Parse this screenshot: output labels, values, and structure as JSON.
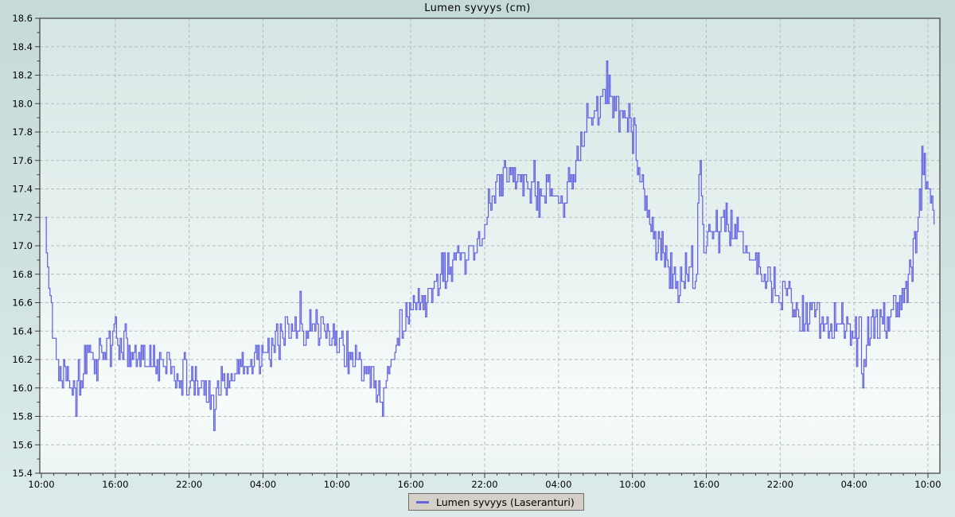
{
  "title": "Lumen syvyys (cm)",
  "legend": {
    "label": "Lumen syvyys (Laseranturi)"
  },
  "colors": {
    "series": "#6464e0",
    "grid": "#b6bdbd",
    "axis": "#3c3c3c",
    "text": "#000000",
    "plot_bg_top": "#d6e6e4",
    "plot_bg_light": "#f7fcfb",
    "plot_bg_bottom": "#edf5f4",
    "legend_bg": "#d4d0c8",
    "legend_border": "#6b6b6b"
  },
  "chart_data": {
    "type": "line",
    "title": "Lumen syvyys (cm)",
    "xlabel": "",
    "ylabel": "",
    "ylim": [
      15.4,
      18.6
    ],
    "y_tick_step": 0.2,
    "y_minor_step": 0.1,
    "grid": true,
    "legend_position": "bottom-center",
    "x_axis": {
      "unit": "time-of-day",
      "span_hours": 72,
      "major_tick_hours": 6,
      "minor_tick_hours": 1,
      "labels": [
        "10:00",
        "16:00",
        "22:00",
        "04:00",
        "10:00",
        "16:00",
        "22:00",
        "04:00",
        "10:00",
        "16:00",
        "22:00",
        "04:00",
        "10:00"
      ]
    },
    "series": [
      {
        "name": "Lumen syvyys (Laseranturi)",
        "color": "#6464e0",
        "quantize_cm": 0.05,
        "sample_step_hours": 0.1,
        "noise_seed": 13,
        "keyframes": [
          [
            0.3,
            17.05,
            0.12
          ],
          [
            0.45,
            17.1,
            0.1
          ],
          [
            0.7,
            16.6,
            0.1
          ],
          [
            1.0,
            16.35,
            0.1
          ],
          [
            1.4,
            16.15,
            0.1
          ],
          [
            2.2,
            16.15,
            0.13
          ],
          [
            2.8,
            15.98,
            0.14
          ],
          [
            3.4,
            16.15,
            0.13
          ],
          [
            4.5,
            16.22,
            0.12
          ],
          [
            5.5,
            16.32,
            0.12
          ],
          [
            6.3,
            16.35,
            0.12
          ],
          [
            7.2,
            16.22,
            0.1
          ],
          [
            8.5,
            16.18,
            0.11
          ],
          [
            10.0,
            16.18,
            0.11
          ],
          [
            11.2,
            16.1,
            0.12
          ],
          [
            12.3,
            16.02,
            0.1
          ],
          [
            13.2,
            16.0,
            0.1
          ],
          [
            14.0,
            15.92,
            0.14
          ],
          [
            14.4,
            16.02,
            0.1
          ],
          [
            15.5,
            16.08,
            0.1
          ],
          [
            16.8,
            16.18,
            0.1
          ],
          [
            18.0,
            16.25,
            0.11
          ],
          [
            19.2,
            16.32,
            0.13
          ],
          [
            20.5,
            16.42,
            0.13
          ],
          [
            22.0,
            16.42,
            0.13
          ],
          [
            23.2,
            16.4,
            0.12
          ],
          [
            24.0,
            16.38,
            0.13
          ],
          [
            24.6,
            16.28,
            0.12
          ],
          [
            25.6,
            16.18,
            0.12
          ],
          [
            26.6,
            16.08,
            0.13
          ],
          [
            27.6,
            15.95,
            0.11
          ],
          [
            28.2,
            16.1,
            0.1
          ],
          [
            28.9,
            16.42,
            0.1
          ],
          [
            30.0,
            16.55,
            0.11
          ],
          [
            31.2,
            16.6,
            0.12
          ],
          [
            32.5,
            16.78,
            0.12
          ],
          [
            33.8,
            16.88,
            0.12
          ],
          [
            35.0,
            16.95,
            0.11
          ],
          [
            35.8,
            17.1,
            0.1
          ],
          [
            36.5,
            17.35,
            0.1
          ],
          [
            37.5,
            17.47,
            0.11
          ],
          [
            39.0,
            17.47,
            0.12
          ],
          [
            40.0,
            17.42,
            0.13
          ],
          [
            40.6,
            17.3,
            0.15
          ],
          [
            41.3,
            17.45,
            0.12
          ],
          [
            42.1,
            17.28,
            0.1
          ],
          [
            42.9,
            17.42,
            0.1
          ],
          [
            43.7,
            17.68,
            0.1
          ],
          [
            44.5,
            17.92,
            0.1
          ],
          [
            45.3,
            18.0,
            0.12
          ],
          [
            45.9,
            18.08,
            0.2
          ],
          [
            46.5,
            17.95,
            0.1
          ],
          [
            47.4,
            17.9,
            0.1
          ],
          [
            48.1,
            17.8,
            0.13
          ],
          [
            48.8,
            17.5,
            0.15
          ],
          [
            49.5,
            17.1,
            0.13
          ],
          [
            50.4,
            16.95,
            0.14
          ],
          [
            51.3,
            16.8,
            0.15
          ],
          [
            52.4,
            16.78,
            0.14
          ],
          [
            53.2,
            16.9,
            0.13
          ],
          [
            53.45,
            17.35,
            0.25
          ],
          [
            53.8,
            17.0,
            0.12
          ],
          [
            54.5,
            17.12,
            0.13
          ],
          [
            55.5,
            17.15,
            0.12
          ],
          [
            56.6,
            17.1,
            0.12
          ],
          [
            57.6,
            16.95,
            0.12
          ],
          [
            58.6,
            16.8,
            0.1
          ],
          [
            60.0,
            16.68,
            0.12
          ],
          [
            61.5,
            16.55,
            0.12
          ],
          [
            63.0,
            16.5,
            0.12
          ],
          [
            64.5,
            16.45,
            0.13
          ],
          [
            65.8,
            16.4,
            0.15
          ],
          [
            66.7,
            16.28,
            0.18
          ],
          [
            67.4,
            16.42,
            0.12
          ],
          [
            68.5,
            16.48,
            0.12
          ],
          [
            69.5,
            16.58,
            0.12
          ],
          [
            70.3,
            16.75,
            0.11
          ],
          [
            71.0,
            17.0,
            0.1
          ],
          [
            71.45,
            17.5,
            0.16
          ],
          [
            71.9,
            17.42,
            0.12
          ],
          [
            72.5,
            17.15,
            0.06
          ]
        ],
        "anchor_points": [
          [
            0.35,
            17.2
          ],
          [
            2.8,
            15.8
          ],
          [
            14.0,
            15.7
          ],
          [
            21.0,
            16.68
          ],
          [
            27.7,
            15.8
          ],
          [
            45.9,
            18.3
          ],
          [
            53.45,
            17.6
          ],
          [
            66.7,
            16.0
          ],
          [
            71.45,
            17.7
          ]
        ]
      }
    ]
  }
}
